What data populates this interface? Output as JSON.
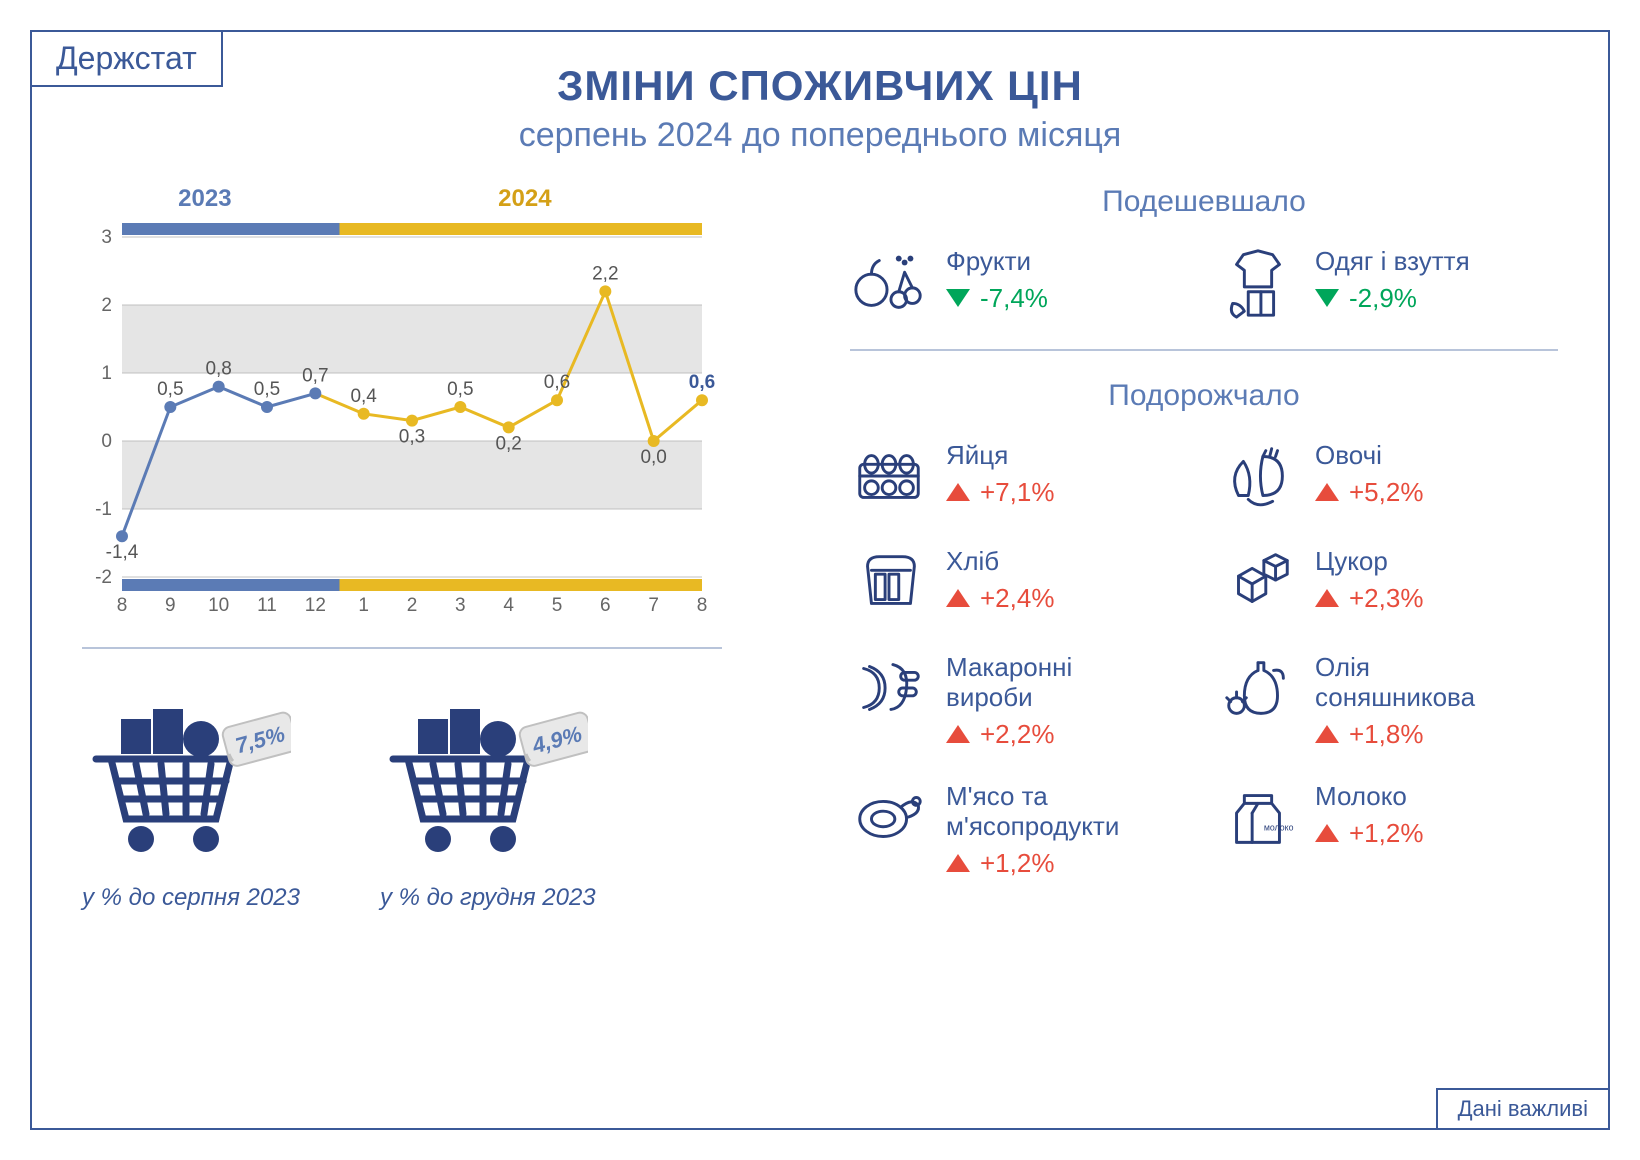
{
  "logo": "Держстат",
  "footer": "Дані важливі",
  "title": "ЗМІНИ СПОЖИВЧИХ ЦІН",
  "subtitle": "серпень 2024 до попереднього місяця",
  "chart": {
    "type": "line",
    "year_2023_label": "2023",
    "year_2024_label": "2024",
    "year_2023_color": "#5b7bb5",
    "year_2024_color": "#e8b923",
    "x_labels": [
      "8",
      "9",
      "10",
      "11",
      "12",
      "1",
      "2",
      "3",
      "4",
      "5",
      "6",
      "7",
      "8"
    ],
    "split_index": 5,
    "values": [
      -1.4,
      0.5,
      0.8,
      0.5,
      0.7,
      0.4,
      0.3,
      0.5,
      0.2,
      0.6,
      2.2,
      0.0,
      0.6
    ],
    "value_labels": [
      "-1,4",
      "0,5",
      "0,8",
      "0,5",
      "0,7",
      "0,4",
      "0,3",
      "0,5",
      "0,2",
      "0,6",
      "2,2",
      "0,0",
      "0,6"
    ],
    "last_bold": true,
    "ylim": [
      -2,
      3
    ],
    "ytick_step": 1,
    "grid_band_color": "#e5e5e5",
    "background_color": "#ffffff",
    "axis_color": "#808080",
    "line_width": 3,
    "marker_radius": 6,
    "label_fontsize": 19
  },
  "carts": [
    {
      "tag": "7,5%",
      "caption": "у % до серпня 2023"
    },
    {
      "tag": "4,9%",
      "caption": "у % до грудня 2023"
    }
  ],
  "cart_color": "#2a3f7a",
  "tag_text_color": "#5b7bb5",
  "cheaper_title": "Подешевшало",
  "pricier_title": "Подорожчало",
  "cheaper": [
    {
      "icon": "fruits",
      "label": "Фрукти",
      "value": "-7,4%"
    },
    {
      "icon": "clothes",
      "label": "Одяг і взуття",
      "value": "-2,9%"
    }
  ],
  "pricier": [
    {
      "icon": "eggs",
      "label": "Яйця",
      "value": "+7,1%"
    },
    {
      "icon": "vegetables",
      "label": "Овочі",
      "value": "+5,2%"
    },
    {
      "icon": "bread",
      "label": "Хліб",
      "value": "+2,4%"
    },
    {
      "icon": "sugar",
      "label": "Цукор",
      "value": "+2,3%"
    },
    {
      "icon": "pasta",
      "label": "Макаронні\nвироби",
      "value": "+2,2%"
    },
    {
      "icon": "oil",
      "label": "Олія\nсоняшникова",
      "value": "+1,8%"
    },
    {
      "icon": "meat",
      "label": "М'ясо та\nм'ясопродукти",
      "value": "+1,2%"
    },
    {
      "icon": "milk",
      "label": "Молоко",
      "value": "+1,2%"
    }
  ],
  "colors": {
    "primary": "#3b5998",
    "green": "#00a65a",
    "red": "#e74c3c",
    "icon_stroke": "#2a3f7a"
  }
}
